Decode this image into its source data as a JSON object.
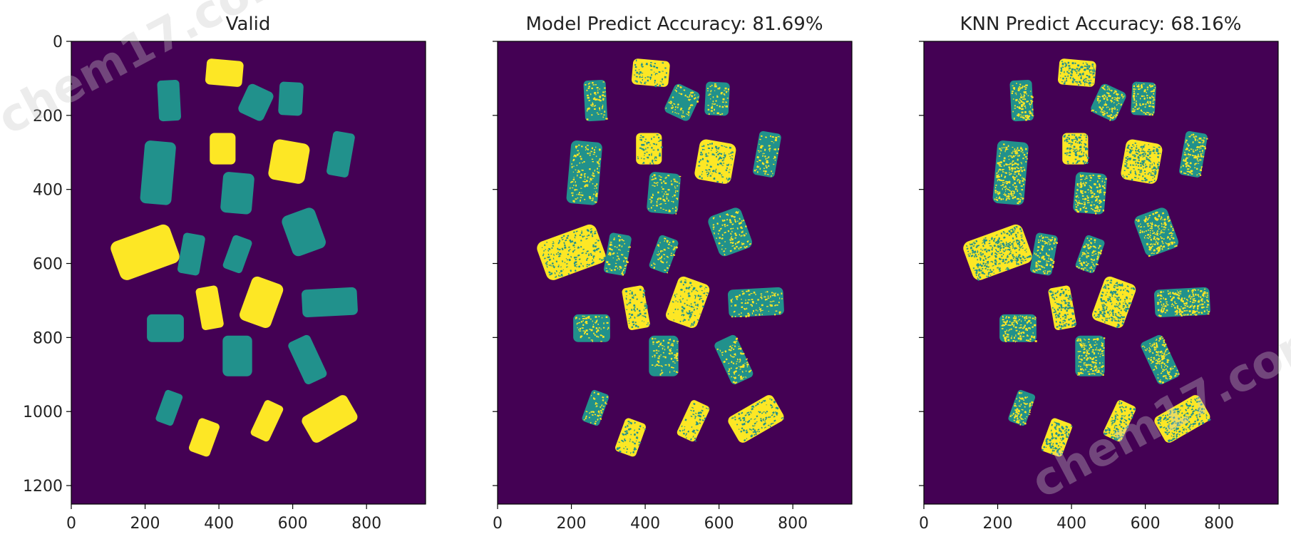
{
  "figure": {
    "watermark_text": "chem17.com",
    "colors": {
      "background": "#440154",
      "class_a": "#21918c",
      "class_b": "#fde725"
    }
  },
  "chart_data": [
    {
      "type": "heatmap",
      "title": "Valid",
      "xlim": [
        0,
        960
      ],
      "ylim": [
        1250,
        0
      ],
      "xticks": [
        0,
        200,
        400,
        600,
        800
      ],
      "yticks": [
        0,
        200,
        400,
        600,
        800,
        1000,
        1200
      ],
      "show_yticklabels": true,
      "speckle": 0
    },
    {
      "type": "heatmap",
      "title": "Model Predict Accuracy: 81.69%",
      "accuracy_percent": 81.69,
      "xlim": [
        0,
        960
      ],
      "ylim": [
        1250,
        0
      ],
      "xticks": [
        0,
        200,
        400,
        600,
        800
      ],
      "yticks": [
        0,
        200,
        400,
        600,
        800,
        1000,
        1200
      ],
      "show_yticklabels": false,
      "speckle": 0.18
    },
    {
      "type": "heatmap",
      "title": "KNN Predict Accuracy: 68.16%",
      "accuracy_percent": 68.16,
      "xlim": [
        0,
        960
      ],
      "ylim": [
        1250,
        0
      ],
      "xticks": [
        0,
        200,
        400,
        600,
        800
      ],
      "yticks": [
        0,
        200,
        400,
        600,
        800,
        1000,
        1200
      ],
      "show_yticklabels": false,
      "speckle": 0.32
    }
  ],
  "objects": [
    {
      "cx": 415,
      "cy": 85,
      "w": 100,
      "h": 70,
      "rot": 5,
      "cls": "b"
    },
    {
      "cx": 265,
      "cy": 160,
      "w": 60,
      "h": 110,
      "rot": -3,
      "cls": "a"
    },
    {
      "cx": 500,
      "cy": 165,
      "w": 75,
      "h": 85,
      "rot": 25,
      "cls": "a"
    },
    {
      "cx": 595,
      "cy": 155,
      "w": 65,
      "h": 90,
      "rot": 3,
      "cls": "a"
    },
    {
      "cx": 410,
      "cy": 290,
      "w": 70,
      "h": 85,
      "rot": 0,
      "cls": "b"
    },
    {
      "cx": 590,
      "cy": 325,
      "w": 100,
      "h": 110,
      "rot": 10,
      "cls": "b"
    },
    {
      "cx": 730,
      "cy": 305,
      "w": 60,
      "h": 120,
      "rot": 10,
      "cls": "a"
    },
    {
      "cx": 235,
      "cy": 355,
      "w": 85,
      "h": 170,
      "rot": 5,
      "cls": "a"
    },
    {
      "cx": 450,
      "cy": 410,
      "w": 85,
      "h": 110,
      "rot": 5,
      "cls": "a"
    },
    {
      "cx": 630,
      "cy": 515,
      "w": 95,
      "h": 115,
      "rot": -20,
      "cls": "a"
    },
    {
      "cx": 200,
      "cy": 570,
      "w": 170,
      "h": 110,
      "rot": -20,
      "cls": "b"
    },
    {
      "cx": 325,
      "cy": 575,
      "w": 60,
      "h": 110,
      "rot": 10,
      "cls": "a"
    },
    {
      "cx": 450,
      "cy": 575,
      "w": 55,
      "h": 95,
      "rot": 20,
      "cls": "a"
    },
    {
      "cx": 375,
      "cy": 720,
      "w": 60,
      "h": 115,
      "rot": -10,
      "cls": "b"
    },
    {
      "cx": 515,
      "cy": 705,
      "w": 90,
      "h": 125,
      "rot": 20,
      "cls": "b"
    },
    {
      "cx": 700,
      "cy": 705,
      "w": 150,
      "h": 75,
      "rot": -3,
      "cls": "a"
    },
    {
      "cx": 255,
      "cy": 775,
      "w": 100,
      "h": 75,
      "rot": 0,
      "cls": "a"
    },
    {
      "cx": 450,
      "cy": 850,
      "w": 80,
      "h": 110,
      "rot": 0,
      "cls": "a"
    },
    {
      "cx": 640,
      "cy": 860,
      "w": 65,
      "h": 125,
      "rot": -25,
      "cls": "a"
    },
    {
      "cx": 265,
      "cy": 990,
      "w": 50,
      "h": 90,
      "rot": 20,
      "cls": "a"
    },
    {
      "cx": 530,
      "cy": 1025,
      "w": 55,
      "h": 105,
      "rot": 25,
      "cls": "b"
    },
    {
      "cx": 700,
      "cy": 1020,
      "w": 140,
      "h": 80,
      "rot": -30,
      "cls": "b"
    },
    {
      "cx": 360,
      "cy": 1070,
      "w": 60,
      "h": 95,
      "rot": 20,
      "cls": "b"
    }
  ]
}
